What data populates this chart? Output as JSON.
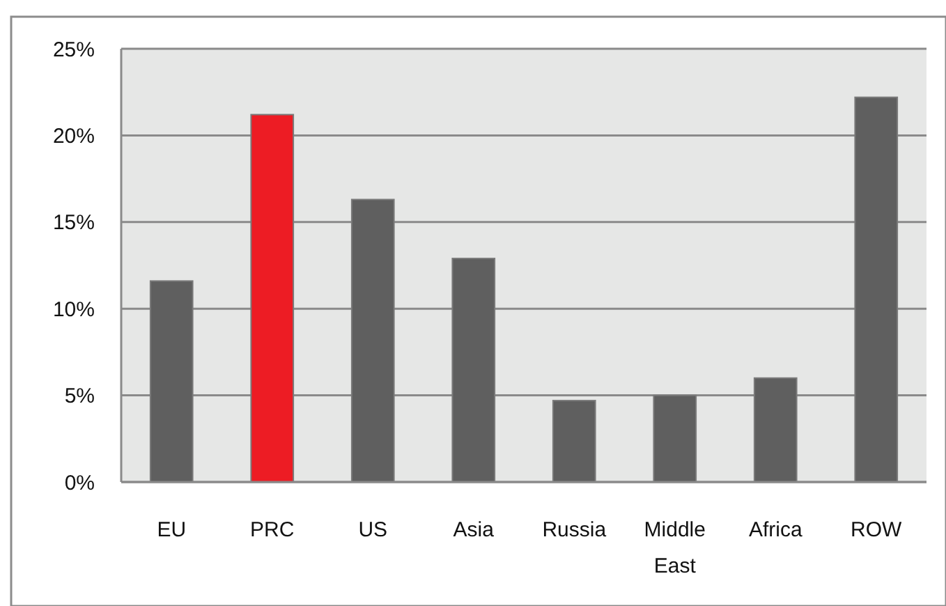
{
  "chart_data": {
    "type": "bar",
    "categories": [
      "EU",
      "PRC",
      "US",
      "Asia",
      "Russia",
      "Middle East",
      "Africa",
      "ROW"
    ],
    "values": [
      11.6,
      21.2,
      16.3,
      12.9,
      4.7,
      5.0,
      6.0,
      22.2
    ],
    "colors": [
      "#5f5f5f",
      "#ed1c24",
      "#5f5f5f",
      "#5f5f5f",
      "#5f5f5f",
      "#5f5f5f",
      "#5f5f5f",
      "#5f5f5f"
    ],
    "ylim": [
      0,
      25
    ],
    "yticks": [
      {
        "value": 0,
        "label": "0%"
      },
      {
        "value": 5,
        "label": "5%"
      },
      {
        "value": 10,
        "label": "10%"
      },
      {
        "value": 15,
        "label": "15%"
      },
      {
        "value": 20,
        "label": "20%"
      },
      {
        "value": 25,
        "label": "25%"
      }
    ],
    "grid": "y"
  }
}
